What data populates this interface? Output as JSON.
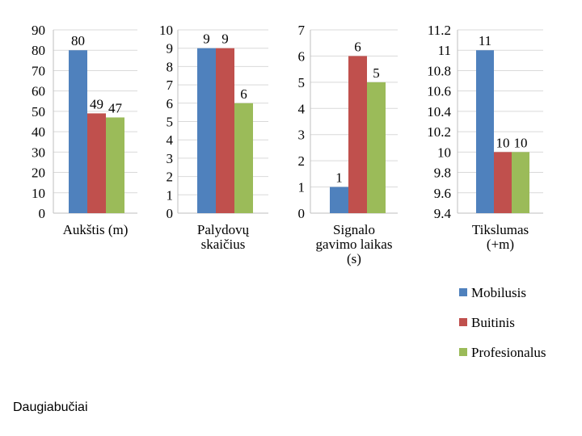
{
  "footer": {
    "label": "Daugiabučiai"
  },
  "legend": {
    "items": [
      {
        "name": "Mobilusis",
        "color": "#4f81bd"
      },
      {
        "name": "Buitinis",
        "color": "#c0504d"
      },
      {
        "name": "Profesionalus",
        "color": "#9bbb59"
      }
    ]
  },
  "chart_data": [
    {
      "type": "bar",
      "xlabel_lines": [
        "Aukštis  (m)"
      ],
      "series": [
        {
          "name": "Mobilusis",
          "values": [
            80
          ]
        },
        {
          "name": "Buitinis",
          "values": [
            49
          ]
        },
        {
          "name": "Profesionalus",
          "values": [
            47
          ]
        }
      ],
      "data_labels": [
        "80",
        "49",
        "47"
      ],
      "ylim": [
        0,
        90
      ],
      "yticks": [
        "0",
        "10",
        "20",
        "30",
        "40",
        "50",
        "60",
        "70",
        "80",
        "90"
      ],
      "grid": true
    },
    {
      "type": "bar",
      "xlabel_lines": [
        "Palydovų",
        "skaičius"
      ],
      "series": [
        {
          "name": "Mobilusis",
          "values": [
            9
          ]
        },
        {
          "name": "Buitinis",
          "values": [
            9
          ]
        },
        {
          "name": "Profesionalus",
          "values": [
            6
          ]
        }
      ],
      "data_labels": [
        "9",
        "9",
        "6"
      ],
      "ylim": [
        0,
        10
      ],
      "yticks": [
        "0",
        "1",
        "2",
        "3",
        "4",
        "5",
        "6",
        "7",
        "8",
        "9",
        "10"
      ],
      "grid": true
    },
    {
      "type": "bar",
      "xlabel_lines": [
        "Signalo",
        "gavimo laikas",
        "(s)"
      ],
      "series": [
        {
          "name": "Mobilusis",
          "values": [
            1
          ]
        },
        {
          "name": "Buitinis",
          "values": [
            6
          ]
        },
        {
          "name": "Profesionalus",
          "values": [
            5
          ]
        }
      ],
      "data_labels": [
        "1",
        "6",
        "5"
      ],
      "ylim": [
        0,
        7
      ],
      "yticks": [
        "0",
        "1",
        "2",
        "3",
        "4",
        "5",
        "6",
        "7"
      ],
      "grid": true
    },
    {
      "type": "bar",
      "xlabel_lines": [
        "Tikslumas",
        "(+m)"
      ],
      "series": [
        {
          "name": "Mobilusis",
          "values": [
            11
          ]
        },
        {
          "name": "Buitinis",
          "values": [
            10
          ]
        },
        {
          "name": "Profesionalus",
          "values": [
            10
          ]
        }
      ],
      "data_labels": [
        "11",
        "10",
        "10"
      ],
      "ylim": [
        9.4,
        11.2
      ],
      "yticks": [
        "9.4",
        "9.6",
        "9.8",
        "10",
        "10.2",
        "10.4",
        "10.6",
        "10.8",
        "11",
        "11.2"
      ],
      "grid": true
    }
  ]
}
